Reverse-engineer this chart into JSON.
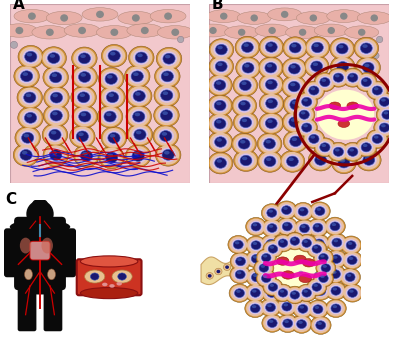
{
  "bg_color": "#ffffff",
  "panel_bg": "#f2c8cc",
  "cell_outer_color": "#d4943a",
  "cell_inner_color": "#f0c898",
  "cell_ring_color": "#e8c0a0",
  "nucleus_color": "#1a1870",
  "nucleus_edge": "#3858b8",
  "nucleus_shine": "#4870c8",
  "label_A": "A",
  "label_B": "B",
  "label_C": "C",
  "red_line_color": "#cc0000",
  "dark_red": "#8b0000",
  "blue_line_color": "#1111cc",
  "circle_color": "#8b0000",
  "vm_lumen_color": "#fffff0",
  "rbc_color": "#cc3333",
  "magenta_color": "#ee00aa",
  "vessel_fill": "#cc3322",
  "vessel_top": "#e05540",
  "vessel_outline": "#8b1010",
  "vessel_inner": "#d04030",
  "body_color": "#0a0a0a",
  "skin_cell_color": "#e8b0a8",
  "skin_nucleus_color": "#888888",
  "tube_fill": "#f0dea0",
  "tube_edge": "#c8a060"
}
